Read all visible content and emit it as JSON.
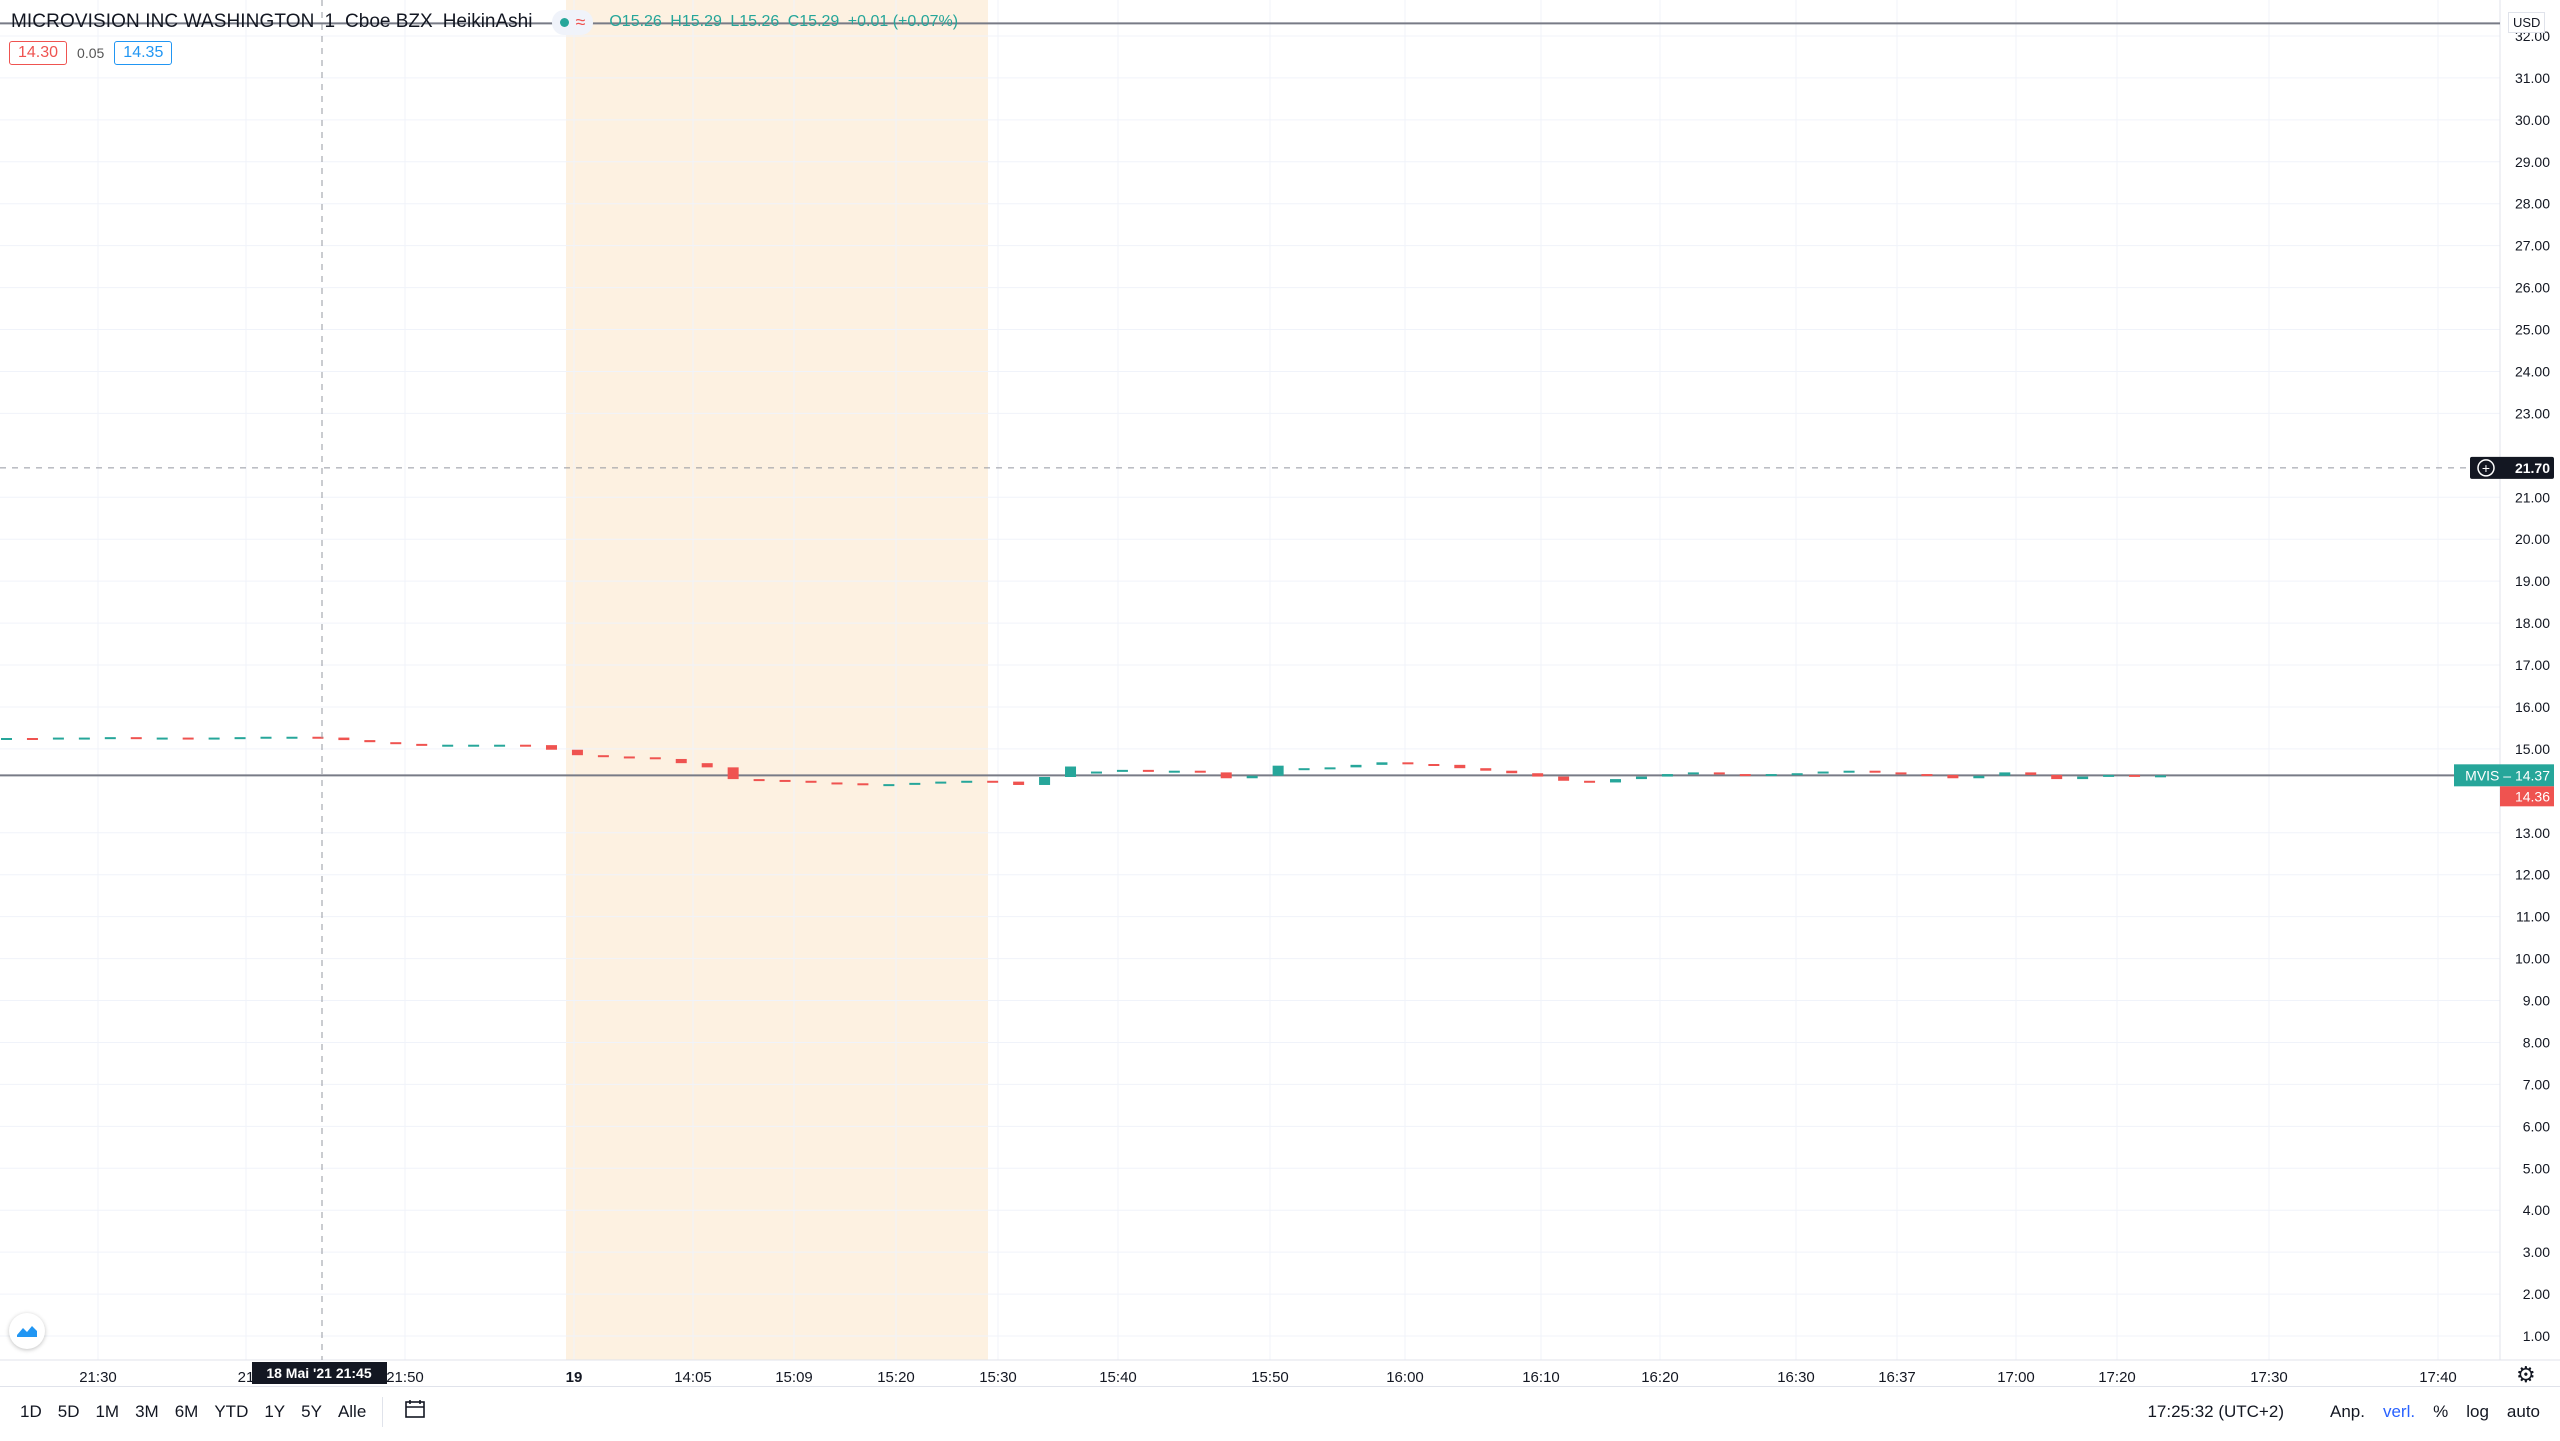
{
  "legend": {
    "symbol": "MICROVISION INC WASHINGTON",
    "interval": "1",
    "exchange": "Cboe BZX",
    "chart_style": "HeikinAshi",
    "approx_symbol": "≈",
    "ohlc": [
      "O15.26",
      "H15.29",
      "L15.26",
      "C15.29",
      "+0.01 (+0.07%)"
    ]
  },
  "quote": {
    "bid": "14.30",
    "spread": "0.05",
    "ask": "14.35"
  },
  "currency": "USD",
  "colors": {
    "up": "#26a69a",
    "down": "#ef5350",
    "session_bg": "#fdf1e1",
    "grid": "#f0f3fa"
  },
  "chart_data": {
    "type": "candlestick",
    "style": "Heikin Ashi",
    "y_axis": {
      "min": 1.0,
      "max": 32.0,
      "step": 1.0,
      "ticks": [
        "32.00",
        "31.00",
        "30.00",
        "29.00",
        "28.00",
        "27.00",
        "26.00",
        "25.00",
        "24.00",
        "23.00",
        "21.00",
        "20.00",
        "19.00",
        "18.00",
        "17.00",
        "16.00",
        "15.00",
        "13.00",
        "12.00",
        "11.00",
        "10.00",
        "9.00",
        "8.00",
        "7.00",
        "6.00",
        "5.00",
        "4.00",
        "3.00",
        "2.00",
        "1.00"
      ]
    },
    "x_axis": {
      "ticks": [
        "21:30",
        "21",
        "21:50",
        "19",
        "14:05",
        "15:09",
        "15:20",
        "15:30",
        "15:40",
        "15:50",
        "16:00",
        "16:10",
        "16:20",
        "16:30",
        "16:37",
        "17:00",
        "17:20",
        "17:30",
        "17:40"
      ]
    },
    "crosshair": {
      "price_label": "21.70",
      "time_label": "18 Mai '21   21:45"
    },
    "last_price": {
      "symbol": "MVIS",
      "value": "14.37",
      "tag": "MVIS – 14.37",
      "prev_label": "14.36"
    },
    "horizontal_level": 14.37,
    "upper_level": 32.3,
    "premarket_session": {
      "start": "19",
      "end": "15:30"
    },
    "candles": [
      {
        "o": 15.25,
        "c": 15.26
      },
      {
        "o": 15.26,
        "c": 15.25
      },
      {
        "o": 15.25,
        "c": 15.27
      },
      {
        "o": 15.27,
        "c": 15.27
      },
      {
        "o": 15.27,
        "c": 15.28
      },
      {
        "o": 15.28,
        "c": 15.27
      },
      {
        "o": 15.27,
        "c": 15.27
      },
      {
        "o": 15.27,
        "c": 15.26
      },
      {
        "o": 15.26,
        "c": 15.27
      },
      {
        "o": 15.27,
        "c": 15.28
      },
      {
        "o": 15.28,
        "c": 15.29
      },
      {
        "o": 15.29,
        "c": 15.29
      },
      {
        "o": 15.29,
        "c": 15.27
      },
      {
        "o": 15.27,
        "c": 15.21
      },
      {
        "o": 15.21,
        "c": 15.16
      },
      {
        "o": 15.16,
        "c": 15.12
      },
      {
        "o": 15.12,
        "c": 15.1
      },
      {
        "o": 15.1,
        "c": 15.1
      },
      {
        "o": 15.1,
        "c": 15.1
      },
      {
        "o": 15.1,
        "c": 15.1
      },
      {
        "o": 15.1,
        "c": 15.09
      },
      {
        "o": 15.09,
        "c": 14.98
      },
      {
        "o": 14.98,
        "c": 14.85
      },
      {
        "o": 14.85,
        "c": 14.82
      },
      {
        "o": 14.82,
        "c": 14.8
      },
      {
        "o": 14.8,
        "c": 14.76
      },
      {
        "o": 14.76,
        "c": 14.66
      },
      {
        "o": 14.66,
        "c": 14.56
      },
      {
        "o": 14.56,
        "c": 14.28
      },
      {
        "o": 14.28,
        "c": 14.26
      },
      {
        "o": 14.26,
        "c": 14.24
      },
      {
        "o": 14.24,
        "c": 14.2
      },
      {
        "o": 14.2,
        "c": 14.18
      },
      {
        "o": 14.18,
        "c": 14.16
      },
      {
        "o": 14.16,
        "c": 14.16
      },
      {
        "o": 14.16,
        "c": 14.19
      },
      {
        "o": 14.19,
        "c": 14.22
      },
      {
        "o": 14.22,
        "c": 14.24
      },
      {
        "o": 14.24,
        "c": 14.22
      },
      {
        "o": 14.22,
        "c": 14.14
      },
      {
        "o": 14.14,
        "c": 14.33
      },
      {
        "o": 14.33,
        "c": 14.58
      },
      {
        "o": 14.42,
        "c": 14.46
      },
      {
        "o": 14.46,
        "c": 14.5
      },
      {
        "o": 14.5,
        "c": 14.46
      },
      {
        "o": 14.46,
        "c": 14.48
      },
      {
        "o": 14.48,
        "c": 14.44
      },
      {
        "o": 14.44,
        "c": 14.3
      },
      {
        "o": 14.3,
        "c": 14.36
      },
      {
        "o": 14.36,
        "c": 14.6
      },
      {
        "o": 14.5,
        "c": 14.54
      },
      {
        "o": 14.54,
        "c": 14.56
      },
      {
        "o": 14.56,
        "c": 14.62
      },
      {
        "o": 14.62,
        "c": 14.68
      },
      {
        "o": 14.68,
        "c": 14.64
      },
      {
        "o": 14.64,
        "c": 14.62
      },
      {
        "o": 14.62,
        "c": 14.54
      },
      {
        "o": 14.54,
        "c": 14.48
      },
      {
        "o": 14.48,
        "c": 14.42
      },
      {
        "o": 14.42,
        "c": 14.34
      },
      {
        "o": 14.34,
        "c": 14.24
      },
      {
        "o": 14.24,
        "c": 14.2
      },
      {
        "o": 14.2,
        "c": 14.28
      },
      {
        "o": 14.28,
        "c": 14.34
      },
      {
        "o": 14.34,
        "c": 14.4
      },
      {
        "o": 14.4,
        "c": 14.44
      },
      {
        "o": 14.44,
        "c": 14.4
      },
      {
        "o": 14.4,
        "c": 14.38
      },
      {
        "o": 14.38,
        "c": 14.4
      },
      {
        "o": 14.4,
        "c": 14.42
      },
      {
        "o": 14.42,
        "c": 14.46
      },
      {
        "o": 14.46,
        "c": 14.48
      },
      {
        "o": 14.48,
        "c": 14.44
      },
      {
        "o": 14.44,
        "c": 14.4
      },
      {
        "o": 14.4,
        "c": 14.38
      },
      {
        "o": 14.38,
        "c": 14.3
      },
      {
        "o": 14.3,
        "c": 14.36
      },
      {
        "o": 14.36,
        "c": 14.44
      },
      {
        "o": 14.44,
        "c": 14.38
      },
      {
        "o": 14.38,
        "c": 14.28
      },
      {
        "o": 14.28,
        "c": 14.34
      },
      {
        "o": 14.34,
        "c": 14.38
      },
      {
        "o": 14.38,
        "c": 14.36
      },
      {
        "o": 14.36,
        "c": 14.37
      }
    ]
  },
  "range_buttons": [
    "1D",
    "5D",
    "1M",
    "3M",
    "6M",
    "YTD",
    "1Y",
    "5Y",
    "Alle"
  ],
  "status_bar": {
    "clock": "17:25:32 (UTC+2)",
    "adj": "Anp.",
    "ext": "verl.",
    "pct": "%",
    "log": "log",
    "auto": "auto"
  }
}
